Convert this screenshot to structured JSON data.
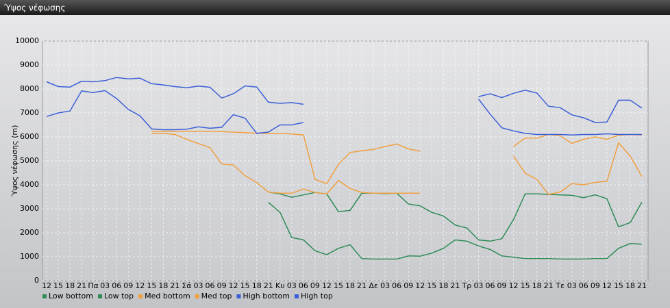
{
  "chart_data": {
    "type": "line",
    "title": "Ύψος νέφωσης",
    "y_label": "Ύψος νέφωσης (m)",
    "categories": [
      "12",
      "15",
      "18",
      "21",
      "Πα",
      "03",
      "06",
      "09",
      "12",
      "15",
      "18",
      "21",
      "Σά",
      "03",
      "06",
      "09",
      "12",
      "15",
      "18",
      "21",
      "Κυ",
      "03",
      "06",
      "09",
      "12",
      "15",
      "18",
      "21",
      "Δε",
      "03",
      "06",
      "09",
      "12",
      "15",
      "18",
      "21",
      "Τρ",
      "03",
      "06",
      "09",
      "12",
      "15",
      "18",
      "21",
      "Τε",
      "03",
      "06",
      "09",
      "12",
      "15",
      "18",
      "21"
    ],
    "ylim": [
      0,
      10000
    ],
    "yticks": [
      0,
      1000,
      2000,
      3000,
      4000,
      5000,
      6000,
      7000,
      8000,
      9000,
      10000
    ],
    "grid": true,
    "series": [
      {
        "name": "Low bottom",
        "color": "#2e8b57",
        "values": [
          null,
          null,
          null,
          null,
          null,
          null,
          null,
          null,
          null,
          null,
          null,
          null,
          null,
          null,
          null,
          null,
          null,
          null,
          null,
          3270,
          2850,
          1800,
          1700,
          1250,
          1080,
          1350,
          1500,
          920,
          900,
          900,
          900,
          1030,
          1020,
          1150,
          1350,
          1700,
          1650,
          1450,
          1300,
          1030,
          980,
          920,
          920,
          920,
          900,
          900,
          900,
          920,
          920,
          1350,
          1550,
          1520
        ]
      },
      {
        "name": "Low top",
        "color": "#2e8b57",
        "values": [
          null,
          null,
          null,
          null,
          null,
          null,
          null,
          null,
          null,
          null,
          null,
          null,
          null,
          null,
          null,
          null,
          null,
          null,
          null,
          3700,
          3620,
          3480,
          3580,
          3680,
          3620,
          2880,
          2930,
          3650,
          3650,
          3630,
          3650,
          3200,
          3120,
          2850,
          2700,
          2320,
          2200,
          1700,
          1650,
          1750,
          2550,
          3620,
          3620,
          3600,
          3580,
          3560,
          3460,
          3580,
          3420,
          2250,
          2420,
          3280
        ]
      },
      {
        "name": "Med bottom",
        "color": "#f0a040",
        "values": [
          null,
          null,
          null,
          null,
          null,
          null,
          null,
          null,
          null,
          6150,
          6150,
          6100,
          5900,
          5720,
          5550,
          4870,
          4830,
          4380,
          4100,
          3700,
          3650,
          3650,
          3820,
          3680,
          3620,
          4180,
          3850,
          3680,
          3650,
          3650,
          3650,
          3650,
          3650,
          null,
          null,
          null,
          null,
          null,
          null,
          null,
          5200,
          4480,
          4230,
          3600,
          3700,
          4050,
          4000,
          4100,
          4150,
          5750,
          5200,
          4350
        ]
      },
      {
        "name": "Med top",
        "color": "#f0a040",
        "values": [
          null,
          null,
          null,
          null,
          null,
          null,
          null,
          null,
          null,
          6230,
          6230,
          6230,
          6230,
          6230,
          6230,
          6220,
          6200,
          6180,
          6150,
          6150,
          6150,
          6120,
          6080,
          4230,
          4050,
          4850,
          5350,
          5420,
          5480,
          5600,
          5700,
          5500,
          5400,
          null,
          null,
          null,
          null,
          null,
          null,
          null,
          5600,
          5950,
          5950,
          6100,
          6050,
          5730,
          5900,
          6000,
          5900,
          6070,
          6100,
          6080
        ]
      },
      {
        "name": "High bottom",
        "color": "#3b5fd6",
        "values": [
          6850,
          7000,
          7080,
          7920,
          7850,
          7930,
          7600,
          7150,
          6880,
          6330,
          6300,
          6300,
          6320,
          6420,
          6360,
          6400,
          6930,
          6780,
          6150,
          6200,
          6500,
          6500,
          6600,
          null,
          null,
          null,
          null,
          null,
          null,
          null,
          null,
          null,
          null,
          null,
          null,
          null,
          null,
          7580,
          6950,
          6380,
          6250,
          6150,
          6100,
          6100,
          6100,
          6080,
          6100,
          6100,
          6130,
          6100,
          6100,
          6100
        ]
      },
      {
        "name": "High top",
        "color": "#3b5fd6",
        "values": [
          8300,
          8100,
          8080,
          8320,
          8300,
          8350,
          8480,
          8420,
          8450,
          8220,
          8170,
          8100,
          8050,
          8120,
          8070,
          7620,
          7800,
          8130,
          8080,
          7450,
          7400,
          7430,
          7360,
          null,
          null,
          null,
          null,
          null,
          null,
          null,
          null,
          null,
          null,
          null,
          null,
          null,
          null,
          7680,
          7800,
          7640,
          7820,
          7950,
          7830,
          7280,
          7220,
          6920,
          6800,
          6600,
          6620,
          7530,
          7530,
          7200
        ]
      }
    ]
  }
}
